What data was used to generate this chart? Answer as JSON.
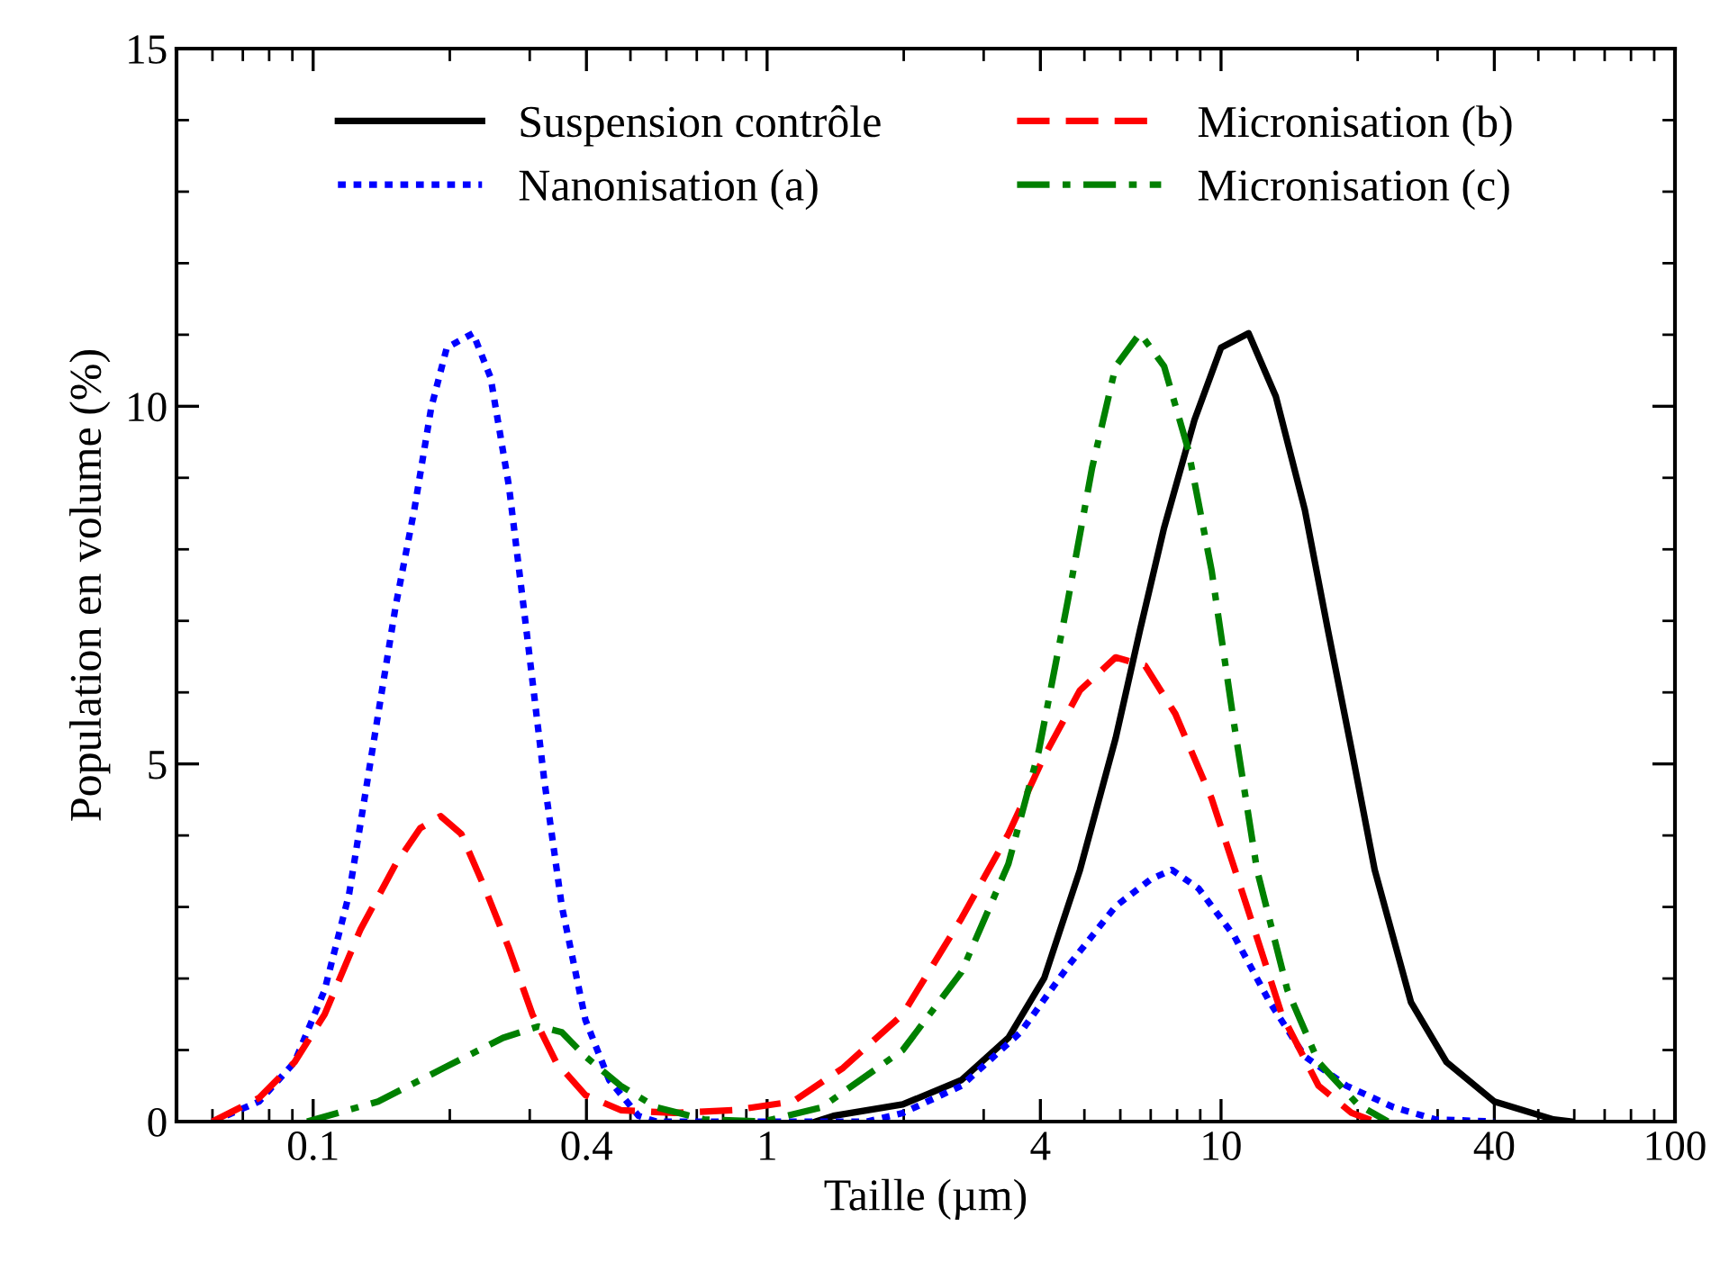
{
  "chart_data": {
    "type": "line",
    "xlabel": "Taille (µm)",
    "ylabel": "Population en volume (%)",
    "log": "x",
    "xlim": [
      0.05,
      100
    ],
    "xticks": [
      0.1,
      0.4,
      1,
      4,
      10,
      40,
      100
    ],
    "ylim": [
      0,
      15
    ],
    "yticks": [
      0,
      5,
      10,
      15
    ],
    "grid": false,
    "legend": "top",
    "marker": "none",
    "series": [
      {
        "name": "Suspension contrôle",
        "color": "#000000",
        "line_style": "solid",
        "x": [
          1.28,
          1.4,
          1.99,
          2.68,
          3.4,
          4.08,
          4.89,
          5.86,
          6.63,
          7.49,
          8.74,
          10.0,
          11.5,
          13.2,
          15.3,
          17.2,
          19.4,
          21.8,
          26.2,
          31.4,
          40,
          54,
          59
        ],
        "values": [
          0,
          0.08,
          0.24,
          0.58,
          1.17,
          2.01,
          3.52,
          5.36,
          6.87,
          8.3,
          9.81,
          10.82,
          11.02,
          10.14,
          8.55,
          6.87,
          5.19,
          3.52,
          1.67,
          0.83,
          0.28,
          0.03,
          0
        ]
      },
      {
        "name": "Nanonisation (a)",
        "color": "#0000ff",
        "line_style": "dotted",
        "x": [
          0.06,
          0.076,
          0.091,
          0.106,
          0.12,
          0.135,
          0.152,
          0.167,
          0.182,
          0.197,
          0.225,
          0.246,
          0.27,
          0.295,
          0.323,
          0.353,
          0.398,
          0.449,
          0.521,
          0.57,
          1.66,
          1.99,
          2.68,
          3.62,
          4.6,
          5.86,
          7.01,
          7.79,
          8.92,
          10.7,
          12.8,
          15.3,
          18.9,
          24.0,
          29.7,
          40
        ],
        "values": [
          0,
          0.28,
          0.83,
          1.84,
          3.18,
          5.19,
          7.21,
          8.55,
          9.98,
          10.82,
          11.02,
          10.4,
          8.88,
          6.87,
          4.77,
          3.01,
          1.42,
          0.58,
          0.08,
          0,
          0,
          0.12,
          0.5,
          1.25,
          2.17,
          3.01,
          3.39,
          3.52,
          3.26,
          2.59,
          1.67,
          0.91,
          0.5,
          0.2,
          0.03,
          0
        ]
      },
      {
        "name": "Micronisation (b)",
        "color": "#ff0000",
        "line_style": "dashed",
        "x": [
          0.06,
          0.076,
          0.091,
          0.106,
          0.127,
          0.152,
          0.172,
          0.191,
          0.212,
          0.239,
          0.27,
          0.304,
          0.343,
          0.398,
          0.476,
          0.624,
          0.846,
          1.14,
          1.47,
          1.99,
          2.68,
          3.4,
          4.08,
          4.89,
          5.86,
          6.81,
          7.93,
          9.53,
          11.4,
          13.6,
          16.4,
          19.4,
          21.8
        ],
        "values": [
          0,
          0.33,
          0.83,
          1.5,
          2.68,
          3.6,
          4.1,
          4.27,
          4.02,
          3.26,
          2.42,
          1.5,
          0.83,
          0.37,
          0.16,
          0.12,
          0.16,
          0.28,
          0.75,
          1.5,
          2.84,
          4.02,
          5.11,
          6.03,
          6.49,
          6.37,
          5.7,
          4.52,
          3.01,
          1.5,
          0.5,
          0.12,
          0
        ]
      },
      {
        "name": "Micronisation (c)",
        "color": "#008000",
        "line_style": "dashdot",
        "x": [
          0.097,
          0.139,
          0.194,
          0.262,
          0.313,
          0.353,
          0.398,
          0.476,
          0.57,
          0.726,
          0.98,
          1.32,
          1.47,
          1.99,
          2.68,
          3.4,
          3.97,
          4.6,
          5.2,
          5.86,
          6.63,
          7.49,
          8.47,
          9.53,
          10.7,
          12.0,
          14.0,
          16.4,
          20.0,
          23.3
        ],
        "values": [
          0,
          0.28,
          0.75,
          1.17,
          1.33,
          1.25,
          0.91,
          0.5,
          0.2,
          0.03,
          0,
          0.2,
          0.41,
          1.0,
          2.09,
          3.6,
          5.19,
          7.29,
          9.14,
          10.56,
          11.02,
          10.56,
          9.39,
          7.71,
          5.53,
          3.52,
          1.84,
          0.83,
          0.24,
          0
        ]
      }
    ]
  }
}
